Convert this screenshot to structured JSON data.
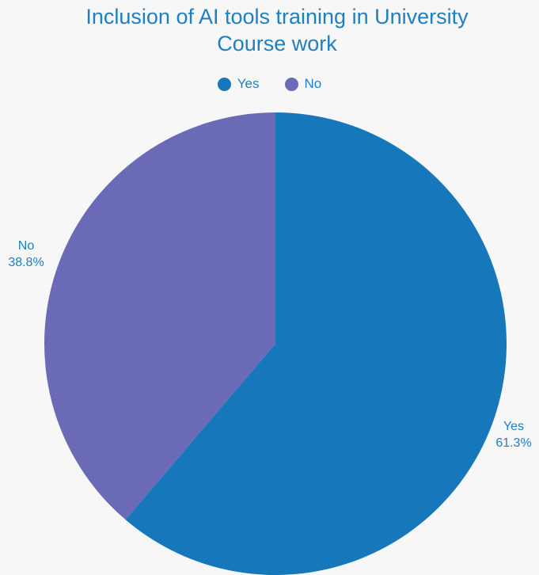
{
  "chart_data": {
    "type": "pie",
    "title": "Inclusion of AI tools training in University Course work",
    "title_lines": [
      "Inclusion of AI tools training in University",
      "Course work"
    ],
    "categories": [
      "Yes",
      "No"
    ],
    "values": [
      61.3,
      38.8
    ],
    "value_labels": [
      "61.3%",
      "38.8%"
    ],
    "colors": [
      "#1677bb",
      "#6b6ab6"
    ],
    "legend_position": "top-center"
  }
}
